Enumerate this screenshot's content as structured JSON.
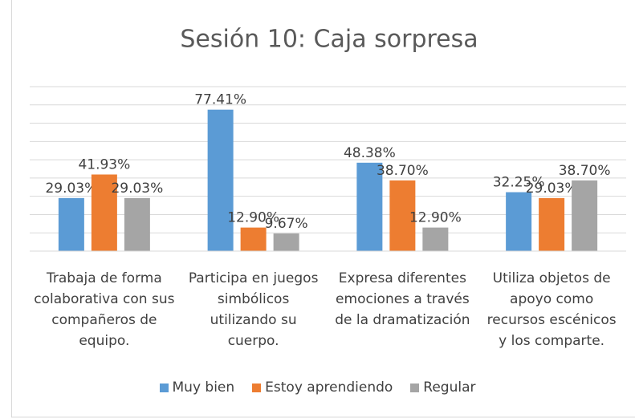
{
  "chart_data": {
    "type": "bar",
    "title": "Sesión 10: Caja sorpresa",
    "categories": [
      "Trabaja de forma colaborativa con sus compañeros de equipo.",
      "Participa en juegos simbólicos utilizando su cuerpo.",
      "Expresa diferentes emociones a través de la dramatización",
      "Utiliza objetos de apoyo como recursos escénicos y los comparte."
    ],
    "series": [
      {
        "name": "Muy bien",
        "color": "#5b9bd5",
        "values": [
          29.03,
          77.41,
          48.38,
          32.25
        ],
        "value_labels": [
          "29.03%",
          "77.41%",
          "48.38%",
          "32.25%"
        ]
      },
      {
        "name": "Estoy aprendiendo",
        "color": "#ed7d31",
        "values": [
          41.93,
          12.9,
          38.7,
          29.03
        ],
        "value_labels": [
          "41.93%",
          "12.90%",
          "38.70%",
          "29.03%"
        ]
      },
      {
        "name": "Regular",
        "color": "#a5a5a5",
        "values": [
          29.03,
          9.67,
          12.9,
          38.7
        ],
        "value_labels": [
          "29.03%",
          "9.67%",
          "12.90%",
          "38.70%"
        ]
      }
    ],
    "ylim": [
      0,
      90
    ],
    "yticks": [
      0,
      10,
      20,
      30,
      40,
      50,
      60,
      70,
      80,
      90
    ],
    "grid": true,
    "legend": "bottom"
  }
}
